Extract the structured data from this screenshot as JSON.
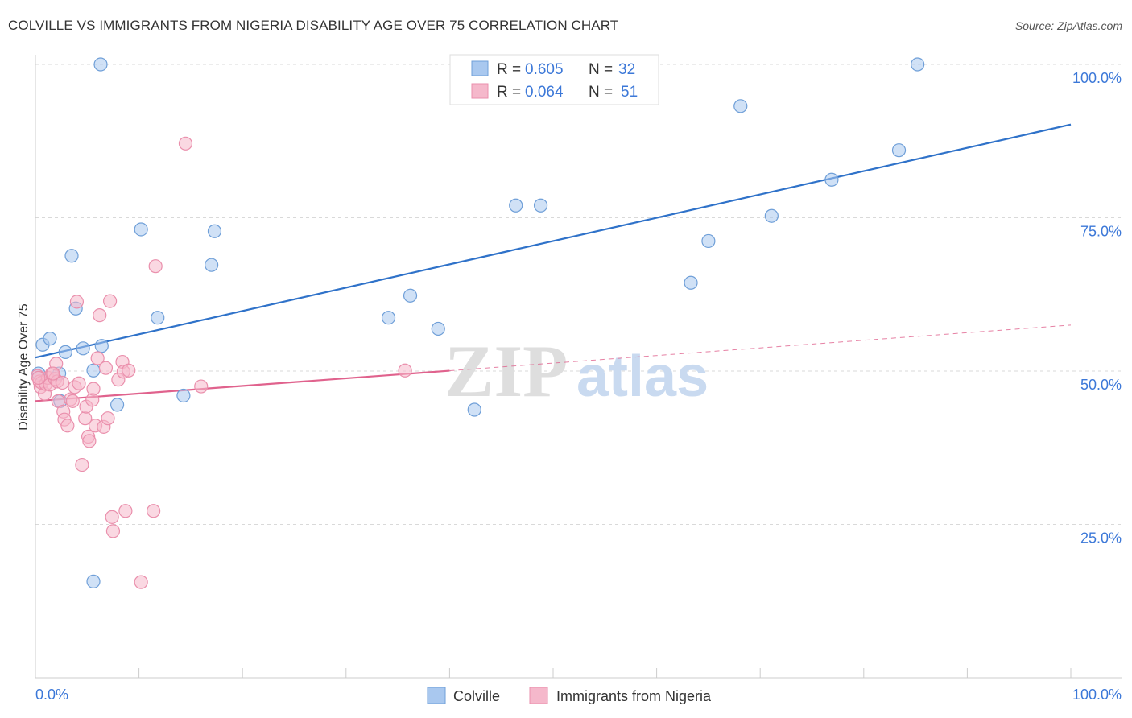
{
  "chart_data": {
    "type": "scatter",
    "title": "COLVILLE VS IMMIGRANTS FROM NIGERIA DISABILITY AGE OVER 75 CORRELATION CHART",
    "source": "Source: ZipAtlas.com",
    "xlabel": "",
    "ylabel": "Disability Age Over 75",
    "xlim": [
      0,
      100
    ],
    "ylim": [
      0,
      100
    ],
    "x_tick_labels": [
      "0.0%",
      "100.0%"
    ],
    "y_ticks": [
      {
        "value": 25,
        "label": "25.0%"
      },
      {
        "value": 50,
        "label": "50.0%"
      },
      {
        "value": 75,
        "label": "75.0%"
      },
      {
        "value": 100,
        "label": "100.0%"
      }
    ],
    "watermark": {
      "zip": "ZIP",
      "atlas": "atlas"
    },
    "colors": {
      "colville_fill": "#a9c8ef",
      "colville_stroke": "#6f9fd8",
      "colville_line": "#2f72c9",
      "nigeria_fill": "#f5b8cb",
      "nigeria_stroke": "#ea8fac",
      "nigeria_line": "#e0628d",
      "value_text": "#3c78d8",
      "grid": "#d9d9d9"
    },
    "legend_stats": [
      {
        "r_label": "R =",
        "r_value": "0.605",
        "n_label": "N =",
        "n_value": "32"
      },
      {
        "r_label": "R =",
        "r_value": "0.064",
        "n_label": "N =",
        "n_value": "51"
      }
    ],
    "series": [
      {
        "name": "Colville",
        "trend": {
          "x0": 0,
          "y0": 52.2,
          "x1": 100,
          "y1": 90.2,
          "dash_from": null
        },
        "points": [
          [
            0.3,
            49.6
          ],
          [
            0.7,
            54.3
          ],
          [
            1.4,
            55.3
          ],
          [
            2.9,
            53.1
          ],
          [
            2.3,
            49.6
          ],
          [
            2.4,
            45.1
          ],
          [
            3.5,
            68.8
          ],
          [
            3.9,
            60.2
          ],
          [
            4.6,
            53.7
          ],
          [
            5.6,
            50.1
          ],
          [
            5.6,
            15.7
          ],
          [
            6.4,
            54.1
          ],
          [
            6.3,
            100.0
          ],
          [
            7.9,
            44.5
          ],
          [
            10.2,
            73.1
          ],
          [
            11.8,
            58.7
          ],
          [
            14.3,
            46.0
          ],
          [
            17.0,
            67.3
          ],
          [
            17.3,
            72.8
          ],
          [
            34.1,
            58.7
          ],
          [
            36.2,
            62.3
          ],
          [
            38.9,
            56.9
          ],
          [
            42.4,
            43.7
          ],
          [
            46.4,
            77.0
          ],
          [
            48.8,
            77.0
          ],
          [
            63.3,
            64.4
          ],
          [
            65.0,
            71.2
          ],
          [
            68.1,
            93.2
          ],
          [
            71.1,
            75.3
          ],
          [
            76.9,
            81.2
          ],
          [
            83.4,
            86.0
          ],
          [
            85.2,
            100.0
          ]
        ]
      },
      {
        "name": "Immigrants from Nigeria",
        "trend": {
          "x0": 0,
          "y0": 45.1,
          "x1": 100,
          "y1": 57.5,
          "dash_from": 40
        },
        "points": [
          [
            0.2,
            49.2
          ],
          [
            0.4,
            48.3
          ],
          [
            0.5,
            47.4
          ],
          [
            0.6,
            48.1
          ],
          [
            0.9,
            46.3
          ],
          [
            1.0,
            47.9
          ],
          [
            1.2,
            48.9
          ],
          [
            1.4,
            47.8
          ],
          [
            1.6,
            49.6
          ],
          [
            1.9,
            48.7
          ],
          [
            2.0,
            51.2
          ],
          [
            2.1,
            48.3
          ],
          [
            2.2,
            45.1
          ],
          [
            2.6,
            48.1
          ],
          [
            2.7,
            43.4
          ],
          [
            2.8,
            42.1
          ],
          [
            3.1,
            41.1
          ],
          [
            3.4,
            45.4
          ],
          [
            3.6,
            45.1
          ],
          [
            3.8,
            47.4
          ],
          [
            4.0,
            61.3
          ],
          [
            4.2,
            48.0
          ],
          [
            4.5,
            34.7
          ],
          [
            4.8,
            42.3
          ],
          [
            4.9,
            44.2
          ],
          [
            5.1,
            39.3
          ],
          [
            5.2,
            38.6
          ],
          [
            5.5,
            45.3
          ],
          [
            5.6,
            47.1
          ],
          [
            5.8,
            41.1
          ],
          [
            6.0,
            52.1
          ],
          [
            6.2,
            59.1
          ],
          [
            6.6,
            40.9
          ],
          [
            6.8,
            50.5
          ],
          [
            7.0,
            42.3
          ],
          [
            7.2,
            61.4
          ],
          [
            7.4,
            26.2
          ],
          [
            7.5,
            23.9
          ],
          [
            8.0,
            48.6
          ],
          [
            8.4,
            51.5
          ],
          [
            8.5,
            49.9
          ],
          [
            8.7,
            27.2
          ],
          [
            9.0,
            50.1
          ],
          [
            10.2,
            15.6
          ],
          [
            11.4,
            27.2
          ],
          [
            11.6,
            67.1
          ],
          [
            14.5,
            87.1
          ],
          [
            16.0,
            47.5
          ],
          [
            1.7,
            49.6
          ],
          [
            0.3,
            48.9
          ],
          [
            35.7,
            50.1
          ]
        ]
      }
    ],
    "legend": [
      {
        "label": "Colville"
      },
      {
        "label": "Immigrants from Nigeria"
      }
    ]
  }
}
